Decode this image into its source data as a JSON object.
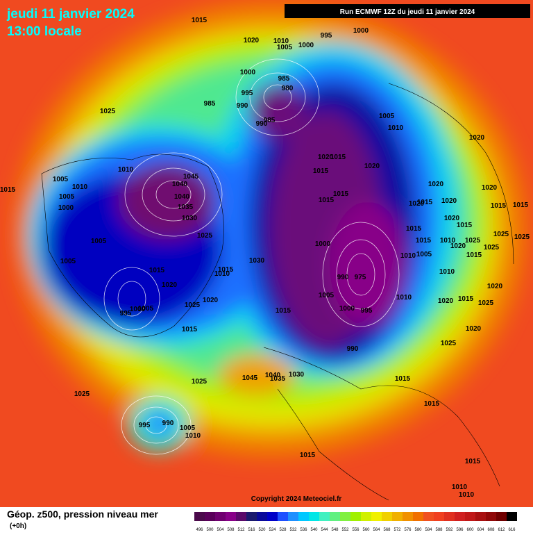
{
  "header": {
    "date": "jeudi 11 janvier 2024",
    "time": "13:00 locale",
    "run": "Run ECMWF 12Z du jeudi 11 janvier 2024"
  },
  "copyright": "Copyright 2024 Meteociel.fr",
  "footer": {
    "title": "Géop. z500, pression niveau mer",
    "lead": "(+0h)"
  },
  "pressure_labels": [
    "1015",
    "1020",
    "1010",
    "1005",
    "995",
    "1000",
    "1000",
    "1025",
    "1000",
    "985",
    "980",
    "995",
    "985",
    "990",
    "1005",
    "1010",
    "1020",
    "985",
    "990",
    "1010",
    "1045",
    "1040",
    "1005",
    "1010",
    "1015",
    "1020",
    "1015",
    "1020",
    "1015",
    "1015",
    "1015",
    "1020",
    "1020",
    "1005",
    "1000",
    "1040",
    "1035",
    "1030",
    "1025",
    "1020",
    "1015",
    "1020",
    "1015",
    "1015",
    "1020",
    "1015",
    "1025",
    "1015",
    "1025",
    "1005",
    "1000",
    "1015",
    "1010",
    "1020",
    "1025",
    "1025",
    "1010",
    "1005",
    "1015",
    "1005",
    "1030",
    "1015",
    "1010",
    "1015",
    "990",
    "975",
    "1010",
    "1020",
    "1020",
    "1005",
    "1010",
    "1020",
    "1015",
    "1025",
    "1020",
    "1025",
    "1000",
    "995",
    "1015",
    "1000",
    "1005",
    "995",
    "1015",
    "1020",
    "990",
    "1025",
    "1015",
    "1045",
    "1040",
    "1035",
    "1030",
    "1025",
    "1025",
    "1015",
    "995",
    "990",
    "1005",
    "1010",
    "1015",
    "1015",
    "1010",
    "1010"
  ],
  "legend": {
    "values": [
      496,
      500,
      504,
      508,
      512,
      516,
      520,
      524,
      528,
      532,
      536,
      540,
      544,
      548,
      552,
      556,
      560,
      564,
      568,
      572,
      576,
      580,
      584,
      588,
      592,
      596,
      600,
      604,
      608,
      612,
      616
    ],
    "colors": [
      "#4b0a4b",
      "#5a005a",
      "#700070",
      "#880088",
      "#5a0a6a",
      "#1a1a6e",
      "#0a0a9a",
      "#0000c8",
      "#1e50ff",
      "#1e90ff",
      "#00c8ff",
      "#00e6e6",
      "#40f0c0",
      "#60f080",
      "#80f040",
      "#a0f000",
      "#d0f000",
      "#f0f000",
      "#f0d000",
      "#f0b000",
      "#f09000",
      "#f07000",
      "#f05020",
      "#f04020",
      "#e03020",
      "#d02020",
      "#c01818",
      "#a81010",
      "#900808",
      "#700000",
      "#000000"
    ]
  }
}
